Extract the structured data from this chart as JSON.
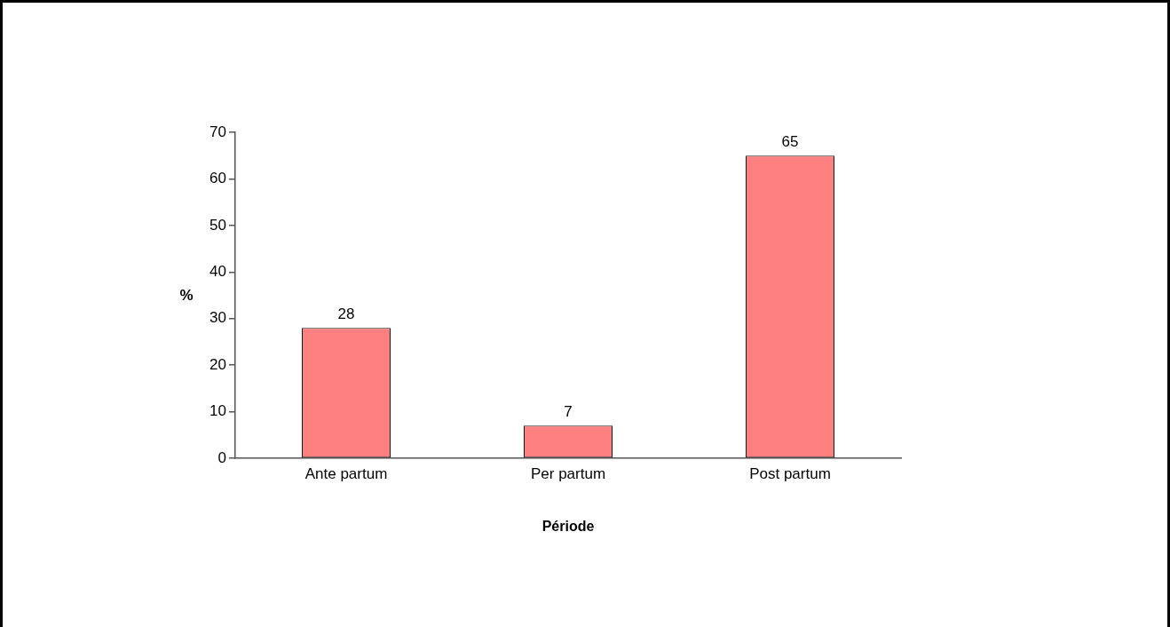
{
  "chart_data": {
    "type": "bar",
    "categories": [
      "Ante partum",
      "Per partum",
      "Post partum"
    ],
    "values": [
      28,
      7,
      65
    ],
    "color": "#ff8080",
    "xlabel": "Période",
    "ylabel": "%",
    "ylim": [
      0,
      70
    ],
    "yticks": [
      0,
      10,
      20,
      30,
      40,
      50,
      60,
      70
    ],
    "data_labels": true
  }
}
